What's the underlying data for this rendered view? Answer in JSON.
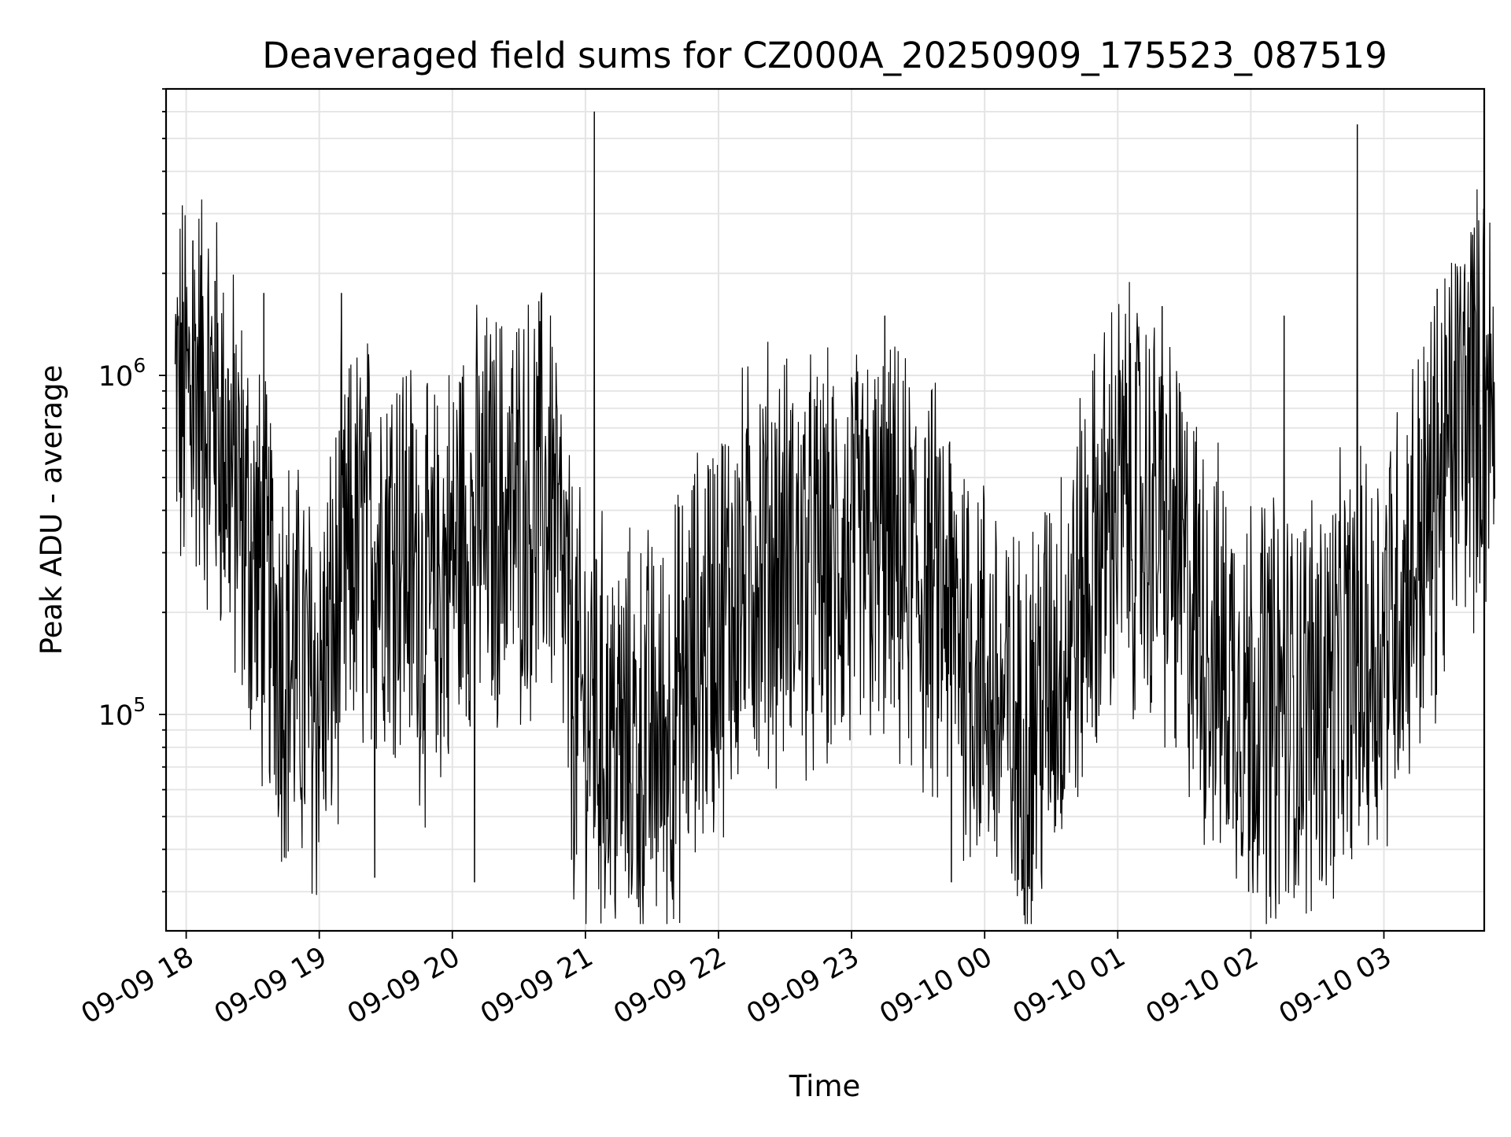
{
  "chart_data": {
    "type": "line",
    "title": "Deaveraged field sums for CZ000A_20250909_175523_087519",
    "xlabel": "Time",
    "ylabel": "Peak ADU - average",
    "yscale": "log",
    "grid": "on",
    "ylim": [
      23000,
      7000000
    ],
    "x_tick_labels": [
      "09-09 18",
      "09-09 19",
      "09-09 20",
      "09-09 21",
      "09-09 22",
      "09-09 23",
      "09-10 00",
      "09-10 01",
      "09-10 02",
      "09-10 03"
    ],
    "y_tick_labels": [
      {
        "value": 100000,
        "base": "10",
        "exp": "5"
      },
      {
        "value": 1000000,
        "base": "10",
        "exp": "6"
      }
    ],
    "x_range": [
      "2025-09-09 17:55",
      "2025-09-10 03:50"
    ],
    "series": [
      {
        "color": "#000000",
        "profile": [
          {
            "t": "2025-09-09 17:55",
            "median": 800000
          },
          {
            "t": "2025-09-09 18:05",
            "median": 950000
          },
          {
            "t": "2025-09-09 18:15",
            "median": 700000
          },
          {
            "t": "2025-09-09 18:30",
            "median": 300000
          },
          {
            "t": "2025-09-09 18:45",
            "median": 150000
          },
          {
            "t": "2025-09-09 19:00",
            "median": 110000
          },
          {
            "t": "2025-09-09 19:15",
            "median": 300000
          },
          {
            "t": "2025-09-09 19:35",
            "median": 350000
          },
          {
            "t": "2025-09-09 19:50",
            "median": 200000
          },
          {
            "t": "2025-09-09 20:05",
            "median": 350000
          },
          {
            "t": "2025-09-09 20:30",
            "median": 400000
          },
          {
            "t": "2025-09-09 20:45",
            "median": 450000
          },
          {
            "t": "2025-09-09 20:55",
            "median": 110000
          },
          {
            "t": "2025-09-09 21:15",
            "median": 80000
          },
          {
            "t": "2025-09-09 21:35",
            "median": 85000
          },
          {
            "t": "2025-09-09 21:55",
            "median": 170000
          },
          {
            "t": "2025-09-09 22:20",
            "median": 300000
          },
          {
            "t": "2025-09-09 22:45",
            "median": 260000
          },
          {
            "t": "2025-09-09 23:15",
            "median": 300000
          },
          {
            "t": "2025-09-09 23:45",
            "median": 200000
          },
          {
            "t": "2025-09-10 00:15",
            "median": 80000
          },
          {
            "t": "2025-09-10 00:35",
            "median": 150000
          },
          {
            "t": "2025-09-10 01:00",
            "median": 450000
          },
          {
            "t": "2025-09-10 01:20",
            "median": 350000
          },
          {
            "t": "2025-09-10 01:45",
            "median": 140000
          },
          {
            "t": "2025-09-10 02:15",
            "median": 100000
          },
          {
            "t": "2025-09-10 02:35",
            "median": 120000
          },
          {
            "t": "2025-09-10 02:55",
            "median": 150000
          },
          {
            "t": "2025-09-10 03:10",
            "median": 250000
          },
          {
            "t": "2025-09-10 03:25",
            "median": 450000
          },
          {
            "t": "2025-09-10 03:35",
            "median": 800000
          },
          {
            "t": "2025-09-10 03:50",
            "median": 850000
          }
        ],
        "spikes": [
          {
            "t": "2025-09-09 18:03",
            "value": 2500000
          },
          {
            "t": "2025-09-09 18:13",
            "value": 1900000
          },
          {
            "t": "2025-09-09 18:35",
            "value": 1750000
          },
          {
            "t": "2025-09-09 19:10",
            "value": 1750000
          },
          {
            "t": "2025-09-09 19:25",
            "value": 33000
          },
          {
            "t": "2025-09-09 20:10",
            "value": 32000
          },
          {
            "t": "2025-09-09 21:04",
            "value": 6000000
          },
          {
            "t": "2025-09-09 21:24",
            "value": 27000
          },
          {
            "t": "2025-09-09 23:15",
            "value": 1500000
          },
          {
            "t": "2025-09-09 23:45",
            "value": 32000
          },
          {
            "t": "2025-09-10 01:20",
            "value": 1600000
          },
          {
            "t": "2025-09-10 01:59",
            "value": 30000
          },
          {
            "t": "2025-09-10 02:15",
            "value": 1500000
          },
          {
            "t": "2025-09-10 02:48",
            "value": 5500000
          },
          {
            "t": "2025-09-10 03:24",
            "value": 1800000
          },
          {
            "t": "2025-09-10 03:40",
            "value": 2600000
          },
          {
            "t": "2025-09-10 03:45",
            "value": 3100000
          }
        ]
      }
    ]
  }
}
